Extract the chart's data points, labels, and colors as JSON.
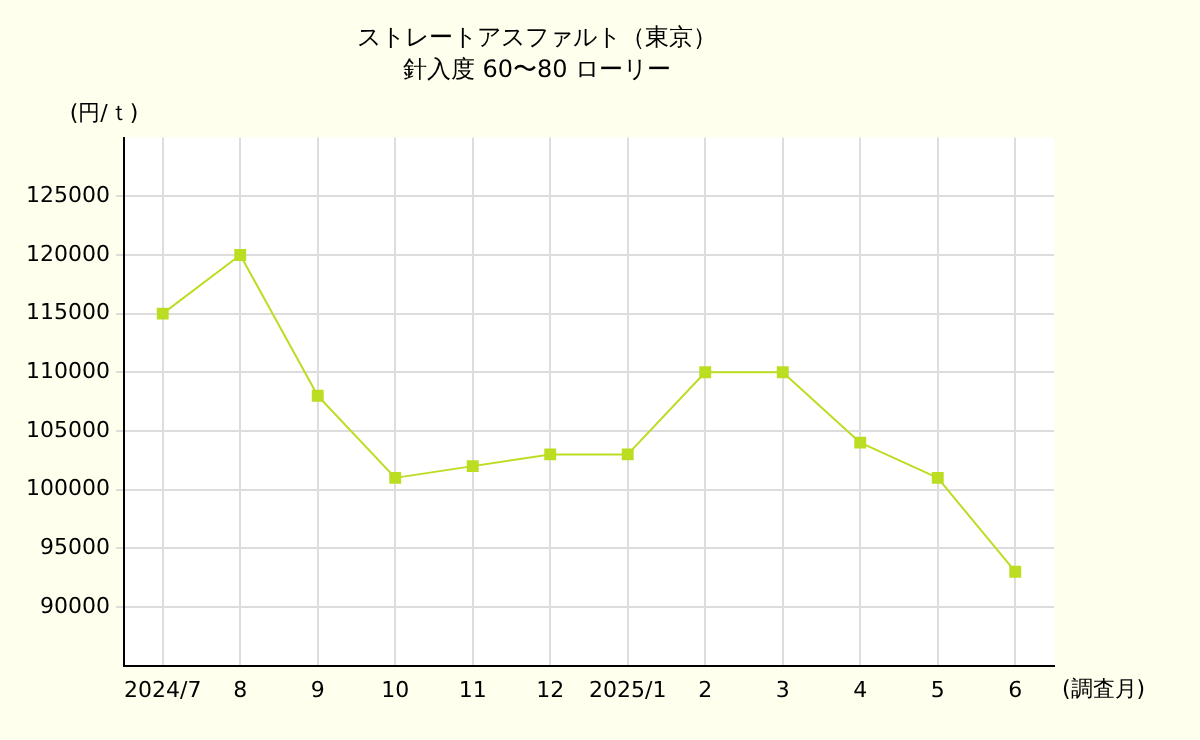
{
  "chart_data": {
    "type": "line",
    "title": "ストレートアスファルト（東京）",
    "subtitle": "針入度 60〜80 ローリー",
    "ylabel": "(円/ｔ)",
    "xlabel": "(調査月)",
    "categories": [
      "2024/7",
      "8",
      "9",
      "10",
      "11",
      "12",
      "2025/1",
      "2",
      "3",
      "4",
      "5",
      "6"
    ],
    "series": [
      {
        "color": "#bbdd22",
        "values": [
          115000,
          120000,
          108000,
          101000,
          102000,
          103000,
          103000,
          110000,
          110000,
          104000,
          101000,
          93000
        ]
      }
    ],
    "ylim": [
      85000,
      130000
    ],
    "yticks": [
      90000,
      95000,
      100000,
      105000,
      110000,
      115000,
      120000,
      125000
    ],
    "grid": true,
    "legend": false,
    "marker": "square",
    "line_style": "solid"
  }
}
